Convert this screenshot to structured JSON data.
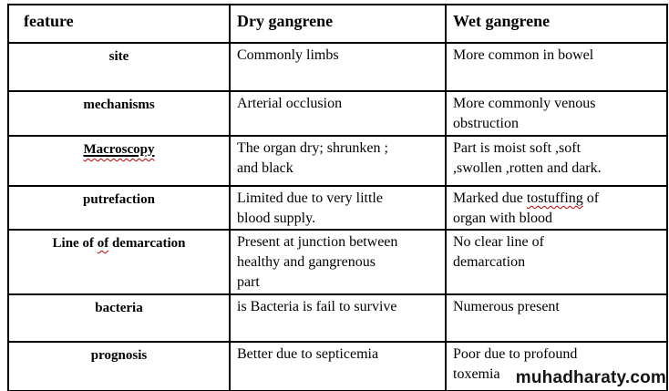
{
  "colors": {
    "text": "#000000",
    "border": "#000000",
    "squiggle": "#c00000",
    "watermark": "#141414"
  },
  "watermark": {
    "text": "muhadharaty.com"
  },
  "table": {
    "columns": [
      "feature",
      "Dry gangrene",
      "Wet gangrene"
    ],
    "rows": [
      {
        "feature": [
          {
            "t": "site"
          }
        ],
        "dry": [
          {
            "t": "Commonly limbs"
          }
        ],
        "wet": [
          {
            "t": "More common in bowel"
          }
        ]
      },
      {
        "feature": [
          {
            "t": "mechanisms"
          }
        ],
        "dry": [
          {
            "t": "Arterial occlusion"
          }
        ],
        "wet": [
          {
            "t": "More commonly venous\nobstruction"
          }
        ]
      },
      {
        "feature": [
          {
            "t": "Macroscopy",
            "s": "u+sq"
          }
        ],
        "dry": [
          {
            "t": "The organ dry; shrunken ;\nand black"
          }
        ],
        "wet": [
          {
            "t": "Part is moist soft ,soft\n,swollen ,rotten and dark."
          }
        ]
      },
      {
        "feature": [
          {
            "t": "putrefaction"
          }
        ],
        "dry": [
          {
            "t": "Limited due to very little\nblood supply."
          }
        ],
        "wet": [
          {
            "t": "Marked due "
          },
          {
            "t": "tostuffing",
            "s": "sq"
          },
          {
            "t": " of\norgan with blood"
          }
        ]
      },
      {
        "feature": [
          {
            "t": "Line of "
          },
          {
            "t": "of",
            "s": "sq"
          },
          {
            "t": " demarcation"
          }
        ],
        "dry": [
          {
            "t": "Present at junction between\nhealthy and gangrenous\npart"
          }
        ],
        "wet": [
          {
            "t": "No clear line of\ndemarcation"
          }
        ]
      },
      {
        "feature": [
          {
            "t": "bacteria"
          }
        ],
        "dry": [
          {
            "t": "is Bacteria is fail to survive"
          }
        ],
        "wet": [
          {
            "t": "Numerous present"
          }
        ]
      },
      {
        "feature": [
          {
            "t": "prognosis"
          }
        ],
        "dry": [
          {
            "t": "Better due to septicemia"
          }
        ],
        "wet": [
          {
            "t": "Poor due to profound\ntoxemia"
          }
        ]
      }
    ]
  }
}
